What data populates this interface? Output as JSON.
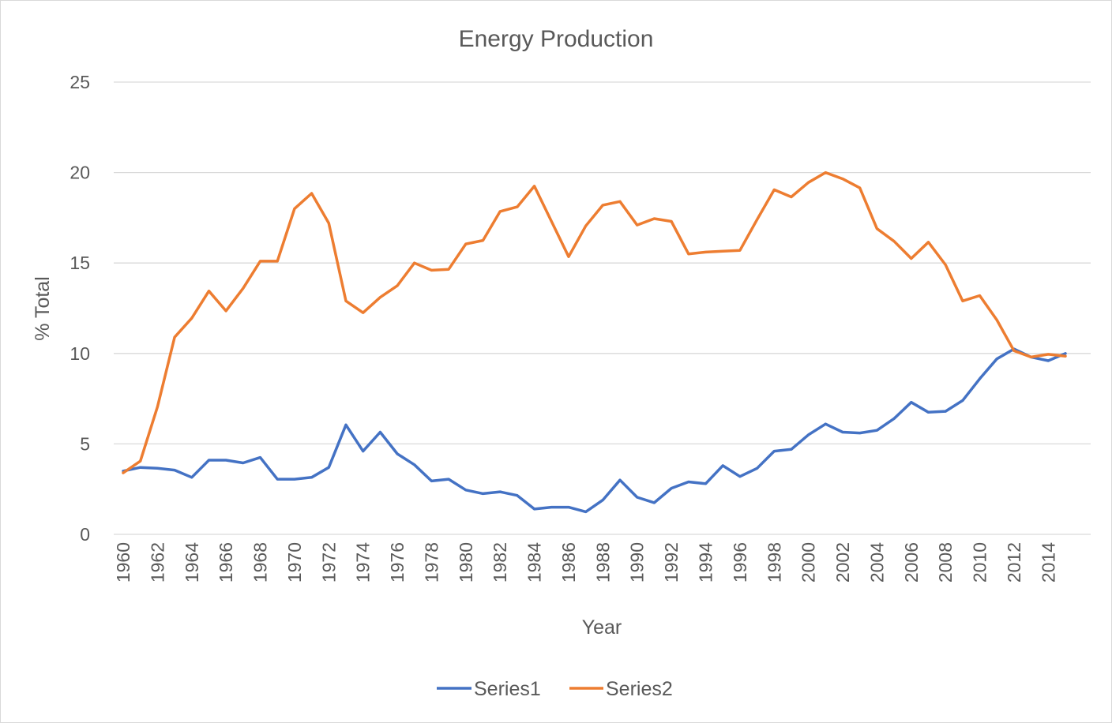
{
  "chart_data": {
    "type": "line",
    "title": "Energy Production",
    "xlabel": "Year",
    "ylabel": "% Total",
    "ylim": [
      0,
      25
    ],
    "yticks": [
      0,
      5,
      10,
      15,
      20,
      25
    ],
    "grid": true,
    "legend_position": "bottom",
    "x": [
      1960,
      1961,
      1962,
      1963,
      1964,
      1965,
      1966,
      1967,
      1968,
      1969,
      1970,
      1971,
      1972,
      1973,
      1974,
      1975,
      1976,
      1977,
      1978,
      1979,
      1980,
      1981,
      1982,
      1983,
      1984,
      1985,
      1986,
      1987,
      1988,
      1989,
      1990,
      1991,
      1992,
      1993,
      1994,
      1995,
      1996,
      1997,
      1998,
      1999,
      2000,
      2001,
      2002,
      2003,
      2004,
      2005,
      2006,
      2007,
      2008,
      2009,
      2010,
      2011,
      2012,
      2013,
      2014,
      2015
    ],
    "xtick_labels": [
      "1960",
      "1962",
      "1964",
      "1966",
      "1968",
      "1970",
      "1972",
      "1974",
      "1976",
      "1978",
      "1980",
      "1982",
      "1984",
      "1986",
      "1988",
      "1990",
      "1992",
      "1994",
      "1996",
      "1998",
      "2000",
      "2002",
      "2004",
      "2006",
      "2008",
      "2010",
      "2012",
      "2014"
    ],
    "series": [
      {
        "name": "Series1",
        "color": "#4472C4",
        "values": [
          3.5,
          3.7,
          3.65,
          3.55,
          3.15,
          4.1,
          4.1,
          3.95,
          4.25,
          3.05,
          3.05,
          3.15,
          3.7,
          6.05,
          4.6,
          5.65,
          4.45,
          3.85,
          2.95,
          3.05,
          2.45,
          2.25,
          2.35,
          2.15,
          1.4,
          1.5,
          1.5,
          1.25,
          1.9,
          3.0,
          2.05,
          1.75,
          2.55,
          2.9,
          2.8,
          3.8,
          3.2,
          3.65,
          4.6,
          4.7,
          5.5,
          6.1,
          5.65,
          5.6,
          5.75,
          6.4,
          7.3,
          6.75,
          6.8,
          7.4,
          8.6,
          9.7,
          10.25,
          9.8,
          9.6,
          10.0
        ]
      },
      {
        "name": "Series2",
        "color": "#ED7D31",
        "values": [
          3.4,
          4.05,
          7.05,
          10.9,
          11.95,
          13.45,
          12.35,
          13.6,
          15.1,
          15.1,
          18.0,
          18.85,
          17.2,
          12.9,
          12.25,
          13.1,
          13.75,
          15.0,
          14.6,
          14.65,
          16.05,
          16.25,
          17.85,
          18.1,
          19.25,
          17.3,
          15.35,
          17.05,
          18.2,
          18.4,
          17.1,
          17.45,
          17.3,
          15.5,
          15.6,
          15.65,
          15.7,
          17.4,
          19.05,
          18.65,
          19.45,
          20.0,
          19.65,
          19.15,
          16.9,
          16.2,
          15.25,
          16.15,
          14.9,
          12.9,
          13.2,
          11.85,
          10.15,
          9.8,
          9.95,
          9.85
        ]
      }
    ]
  }
}
